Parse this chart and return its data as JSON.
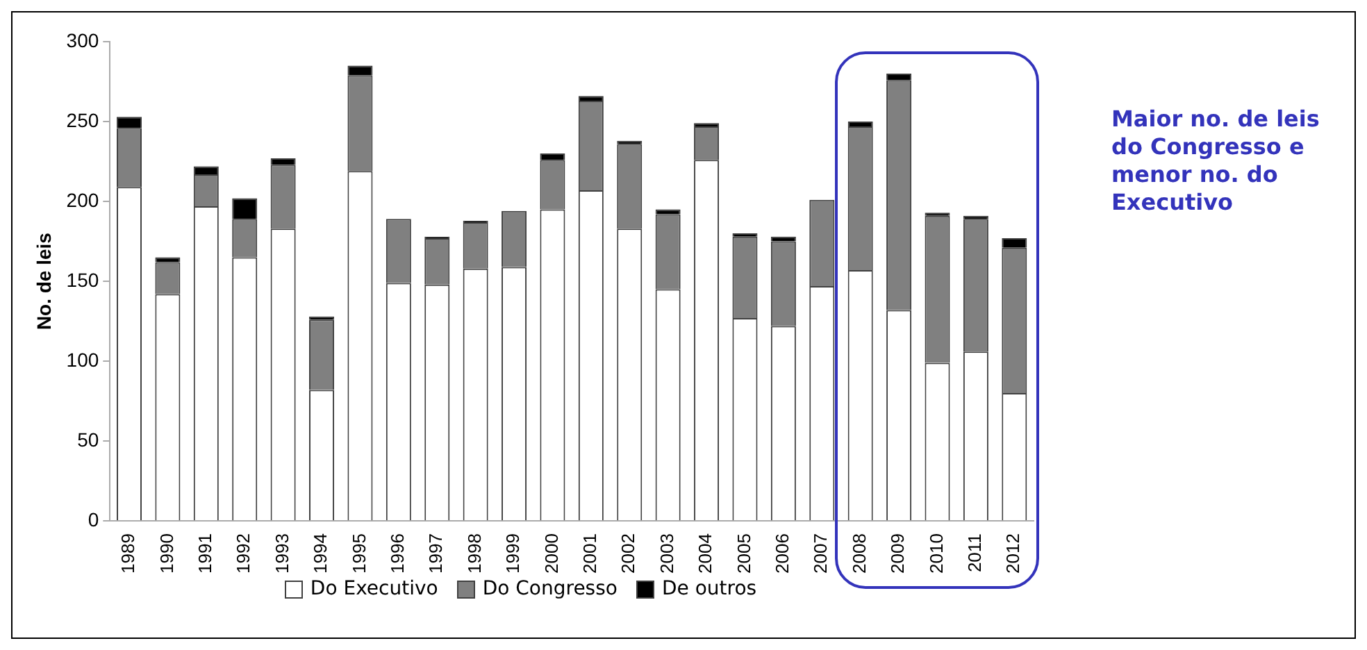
{
  "chart_data": {
    "type": "bar",
    "stacked": true,
    "ylabel": "No. de leis",
    "categories": [
      "1989",
      "1990",
      "1991",
      "1992",
      "1993",
      "1994",
      "1995",
      "1996",
      "1997",
      "1998",
      "1999",
      "2000",
      "2001",
      "2002",
      "2003",
      "2004",
      "2005",
      "2006",
      "2007",
      "2008",
      "2009",
      "2010",
      "2011",
      "2012"
    ],
    "series": [
      {
        "name": "Do Executivo",
        "color": "#ffffff",
        "values": [
          209,
          142,
          197,
          165,
          183,
          82,
          219,
          149,
          148,
          158,
          159,
          195,
          207,
          183,
          145,
          226,
          127,
          122,
          147,
          157,
          132,
          99,
          106,
          80
        ]
      },
      {
        "name": "Do Congresso",
        "color": "#808080",
        "values": [
          37,
          20,
          20,
          24,
          40,
          44,
          60,
          40,
          29,
          29,
          35,
          31,
          56,
          53,
          47,
          21,
          51,
          53,
          54,
          90,
          144,
          92,
          83,
          91
        ]
      },
      {
        "name": "De outros",
        "color": "#000000",
        "values": [
          7,
          3,
          5,
          13,
          4,
          2,
          6,
          0,
          1,
          1,
          0,
          4,
          3,
          2,
          3,
          2,
          2,
          3,
          0,
          3,
          4,
          2,
          2,
          6
        ]
      }
    ],
    "ylim": [
      0,
      300
    ],
    "yticks": [
      0,
      50,
      100,
      150,
      200,
      250,
      300
    ],
    "grid": false,
    "legend": "bottom",
    "annotations": [
      "Maior no. de leis do Congresso e menor no. do Executivo"
    ]
  }
}
